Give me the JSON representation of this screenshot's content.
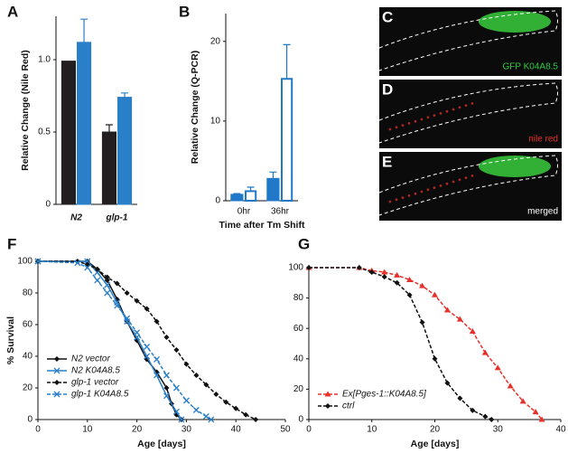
{
  "chart_data": [
    {
      "type": "bar",
      "label": "A",
      "ylabel": "Relative Change (Nile Red)",
      "categories": [
        "N2",
        "glp-1"
      ],
      "series": [
        {
          "color": "#231f20",
          "style": "filled",
          "values": [
            0.99,
            0.5
          ],
          "errors": [
            null,
            0.05
          ]
        },
        {
          "color": "#2a7fc9",
          "style": "filled",
          "values": [
            1.12,
            0.74
          ],
          "errors": [
            0.16,
            0.03
          ]
        }
      ],
      "ylim": [
        0,
        1.3
      ],
      "yticks": [
        0,
        0.5,
        {
          "value": 1,
          "label": "1.0"
        }
      ]
    },
    {
      "type": "bar",
      "label": "B",
      "ylabel": "Relative Change (Q-PCR)",
      "xlabel": "Time after Tm Shift",
      "categories": [
        "0hr",
        "36hr"
      ],
      "series": [
        {
          "color": "#1f78c8",
          "style": "filled",
          "values": [
            0.8,
            2.8
          ],
          "errors": [
            0.1,
            0.8
          ]
        },
        {
          "color": "#1f78c8",
          "style": "outline",
          "values": [
            1.2,
            15.3
          ],
          "errors": [
            0.5,
            4.3
          ]
        }
      ],
      "ylim": [
        0,
        23.5
      ],
      "yticks": [
        0,
        10,
        20
      ]
    },
    {
      "type": "image",
      "label": "C",
      "caption": "GFP K04A8.5",
      "color": "#2ecc40",
      "gfp": true
    },
    {
      "type": "image",
      "label": "D",
      "caption": "nile red",
      "color": "#e8302a",
      "gfp": false
    },
    {
      "type": "image",
      "label": "E",
      "caption": "merged",
      "color": "#ffffff",
      "gfp": true
    },
    {
      "type": "line",
      "label": "F",
      "ylabel": "% Survival",
      "xlabel": "Age [days]",
      "legend": "lower left",
      "xlim": [
        0,
        50
      ],
      "xticks": [
        0,
        10,
        20,
        30,
        40,
        50
      ],
      "ylim": [
        0,
        100
      ],
      "yticks": [
        0,
        20,
        40,
        60,
        80,
        100
      ],
      "series": [
        {
          "name": "N2 vector",
          "color": "#111111",
          "dash": false,
          "marker": "diamond",
          "x": [
            0,
            10,
            12,
            14,
            16,
            18,
            20,
            22,
            24,
            26,
            27,
            28,
            29
          ],
          "values": [
            100,
            100,
            95,
            88,
            76,
            62,
            50,
            38,
            30,
            20,
            10,
            3,
            0
          ]
        },
        {
          "name": "N2 K04A8.5",
          "color": "#2a7fc9",
          "dash": false,
          "marker": "x",
          "x": [
            0,
            10,
            12,
            14,
            16,
            18,
            20,
            22,
            24,
            26,
            28,
            29
          ],
          "values": [
            100,
            100,
            93,
            85,
            74,
            62,
            52,
            40,
            28,
            15,
            5,
            0
          ]
        },
        {
          "name": "glp-1 vector",
          "color": "#111111",
          "dash": true,
          "marker": "diamond",
          "x": [
            0,
            8,
            10,
            12,
            14,
            16,
            18,
            20,
            22,
            24,
            26,
            28,
            30,
            32,
            34,
            36,
            38,
            40,
            42,
            44
          ],
          "values": [
            100,
            100,
            98,
            95,
            90,
            86,
            80,
            75,
            70,
            62,
            52,
            44,
            35,
            28,
            22,
            16,
            11,
            7,
            3,
            0
          ]
        },
        {
          "name": "glp-1 K04A8.5",
          "color": "#2a7fc9",
          "dash": true,
          "marker": "x",
          "x": [
            0,
            8,
            10,
            12,
            14,
            16,
            18,
            20,
            22,
            24,
            26,
            28,
            30,
            32,
            34,
            35
          ],
          "values": [
            100,
            99,
            96,
            88,
            80,
            72,
            64,
            55,
            46,
            38,
            28,
            20,
            12,
            6,
            2,
            0
          ]
        }
      ]
    },
    {
      "type": "line",
      "label": "G",
      "xlabel": "Age [days]",
      "legend": "lower left",
      "xlim": [
        0,
        40
      ],
      "xticks": [
        0,
        10,
        20,
        30,
        40
      ],
      "ylim": [
        0,
        100
      ],
      "yticks": [
        0,
        20,
        40,
        60,
        80,
        100
      ],
      "series": [
        {
          "name": "Ex[Pges-1::K04A8.5]",
          "color": "#e8302a",
          "dash": true,
          "marker": "triangle",
          "x": [
            0,
            8,
            10,
            12,
            14,
            16,
            18,
            20,
            22,
            24,
            26,
            28,
            30,
            32,
            34,
            36,
            37
          ],
          "values": [
            100,
            100,
            98,
            97,
            95,
            92,
            88,
            82,
            72,
            66,
            58,
            44,
            34,
            22,
            12,
            5,
            0
          ]
        },
        {
          "name": "ctrl",
          "color": "#111111",
          "dash": true,
          "marker": "diamond",
          "x": [
            0,
            8,
            10,
            12,
            14,
            16,
            18,
            20,
            22,
            24,
            26,
            28,
            29
          ],
          "values": [
            100,
            100,
            97,
            94,
            90,
            82,
            64,
            40,
            24,
            14,
            6,
            2,
            0
          ]
        }
      ]
    }
  ]
}
